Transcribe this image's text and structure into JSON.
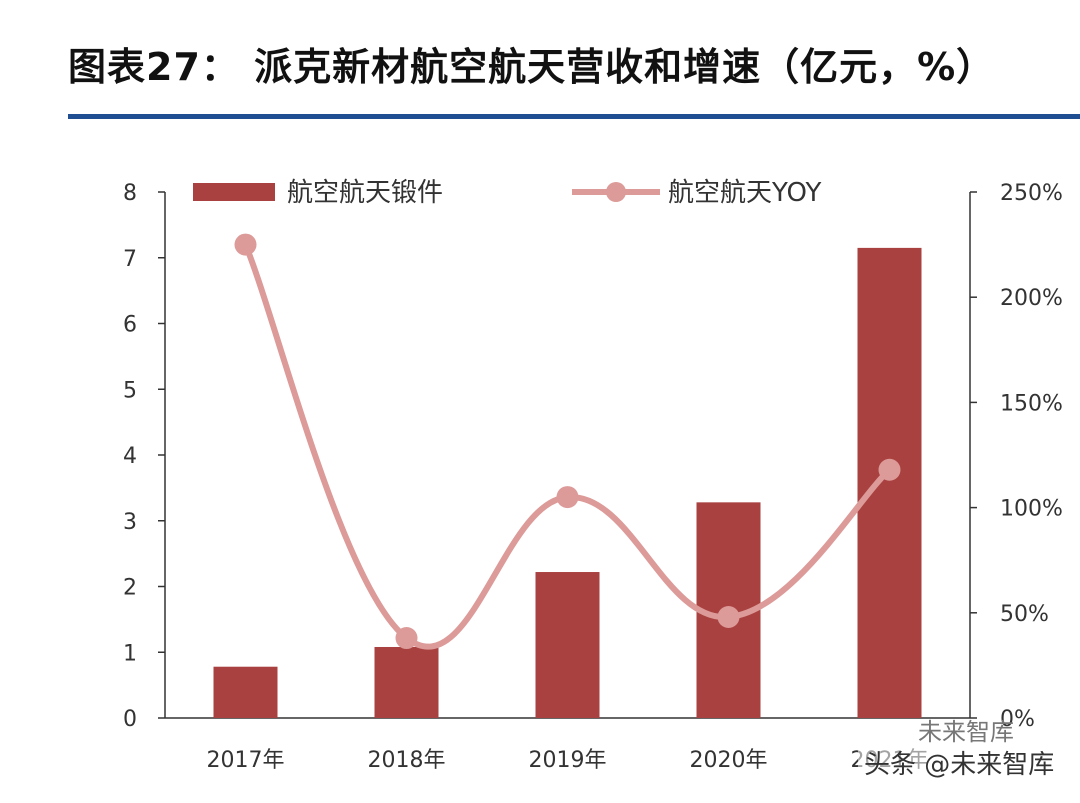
{
  "title": "图表27：  派克新材航空航天营收和增速（亿元，%）",
  "colors": {
    "bar": "#a8413f",
    "line": "#dc9a98",
    "rule": "#1f4e93",
    "axis": "#333333"
  },
  "chart_data": {
    "type": "bar",
    "categories": [
      "2017年",
      "2018年",
      "2019年",
      "2020年",
      "2021年"
    ],
    "series": [
      {
        "name": "航空航天锻件",
        "type": "bar",
        "axis": "left",
        "values": [
          0.78,
          1.08,
          2.22,
          3.28,
          7.15
        ]
      },
      {
        "name": "航空航天YOY",
        "type": "line",
        "axis": "right",
        "values": [
          225,
          38,
          105,
          48,
          118
        ]
      }
    ],
    "y_left": {
      "min": 0,
      "max": 8,
      "ticks": [
        "0",
        "1",
        "2",
        "3",
        "4",
        "5",
        "6",
        "7",
        "8"
      ]
    },
    "y_right": {
      "min": 0,
      "max": 250,
      "ticks": [
        "0%",
        "50%",
        "100%",
        "150%",
        "200%",
        "250%"
      ]
    },
    "legend": "top"
  },
  "watermark": {
    "text": "头条 @未来智库",
    "sub": "未来智库"
  }
}
